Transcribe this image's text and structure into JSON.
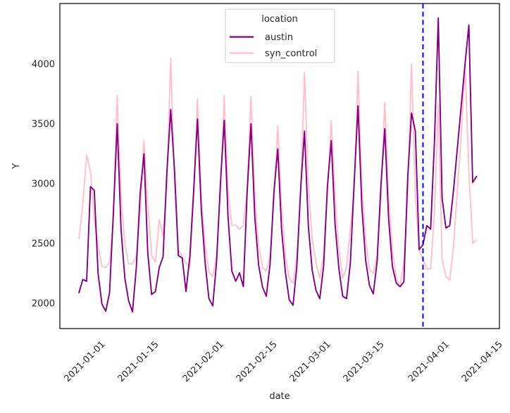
{
  "figure": {
    "background": "#ffffff"
  },
  "chart_data": {
    "type": "line",
    "title": "",
    "xlabel": "date",
    "ylabel": "Y",
    "legend_title": "location",
    "legend_position": "upper center",
    "grid": false,
    "text_color": "#262626",
    "spine_color": "#262626",
    "ylim": [
      1790,
      4505
    ],
    "xlim": [
      "2020-12-21",
      "2021-04-15"
    ],
    "yticks": [
      2000,
      2500,
      3000,
      3500,
      4000
    ],
    "xticks": [
      "2021-01-01",
      "2021-01-15",
      "2021-02-01",
      "2021-02-15",
      "2021-03-01",
      "2021-03-15",
      "2021-04-01",
      "2021-04-15"
    ],
    "treatment_line": {
      "x": "2021-03-26",
      "color": "#0000EE",
      "style": "dashed"
    },
    "x": [
      "2020-12-26",
      "2020-12-27",
      "2020-12-28",
      "2020-12-29",
      "2020-12-30",
      "2020-12-31",
      "2021-01-01",
      "2021-01-02",
      "2021-01-03",
      "2021-01-04",
      "2021-01-05",
      "2021-01-06",
      "2021-01-07",
      "2021-01-08",
      "2021-01-09",
      "2021-01-10",
      "2021-01-11",
      "2021-01-12",
      "2021-01-13",
      "2021-01-14",
      "2021-01-15",
      "2021-01-16",
      "2021-01-17",
      "2021-01-18",
      "2021-01-19",
      "2021-01-20",
      "2021-01-21",
      "2021-01-22",
      "2021-01-23",
      "2021-01-24",
      "2021-01-25",
      "2021-01-26",
      "2021-01-27",
      "2021-01-28",
      "2021-01-29",
      "2021-01-30",
      "2021-01-31",
      "2021-02-01",
      "2021-02-02",
      "2021-02-03",
      "2021-02-04",
      "2021-02-05",
      "2021-02-06",
      "2021-02-07",
      "2021-02-08",
      "2021-02-09",
      "2021-02-10",
      "2021-02-11",
      "2021-02-12",
      "2021-02-13",
      "2021-02-14",
      "2021-02-15",
      "2021-02-16",
      "2021-02-17",
      "2021-02-18",
      "2021-02-19",
      "2021-02-20",
      "2021-02-21",
      "2021-02-22",
      "2021-02-23",
      "2021-02-24",
      "2021-02-25",
      "2021-02-26",
      "2021-02-27",
      "2021-02-28",
      "2021-03-01",
      "2021-03-02",
      "2021-03-03",
      "2021-03-04",
      "2021-03-05",
      "2021-03-06",
      "2021-03-07",
      "2021-03-08",
      "2021-03-09",
      "2021-03-10",
      "2021-03-11",
      "2021-03-12",
      "2021-03-13",
      "2021-03-14",
      "2021-03-15",
      "2021-03-16",
      "2021-03-17",
      "2021-03-18",
      "2021-03-19",
      "2021-03-20",
      "2021-03-21",
      "2021-03-22",
      "2021-03-23",
      "2021-03-24",
      "2021-03-25",
      "2021-03-26",
      "2021-03-27",
      "2021-03-28",
      "2021-03-29",
      "2021-03-30",
      "2021-03-31",
      "2021-04-01",
      "2021-04-02",
      "2021-04-03",
      "2021-04-04",
      "2021-04-05",
      "2021-04-06",
      "2021-04-07",
      "2021-04-08",
      "2021-04-09"
    ],
    "series": [
      {
        "name": "austin",
        "color": "#800080",
        "values": [
          2090,
          2200,
          2185,
          2975,
          2945,
          2250,
          1995,
          1935,
          2090,
          2760,
          3500,
          2620,
          2210,
          2020,
          1930,
          2300,
          2920,
          3250,
          2420,
          2075,
          2100,
          2300,
          2390,
          3100,
          3620,
          3110,
          2400,
          2380,
          2100,
          2390,
          2940,
          3540,
          2780,
          2340,
          2040,
          1980,
          2350,
          3000,
          3530,
          2720,
          2270,
          2185,
          2255,
          2140,
          2930,
          3500,
          2720,
          2320,
          2140,
          2060,
          2330,
          2930,
          3290,
          2620,
          2260,
          2030,
          1985,
          2310,
          2960,
          3440,
          2650,
          2280,
          2110,
          2040,
          2310,
          2980,
          3360,
          2660,
          2290,
          2060,
          2040,
          2340,
          3010,
          3650,
          2810,
          2360,
          2150,
          2080,
          2350,
          2990,
          3460,
          2710,
          2310,
          2170,
          2140,
          2180,
          3050,
          3590,
          3440,
          2450,
          2490,
          2650,
          2620,
          3350,
          4385,
          2880,
          2630,
          2650,
          2950,
          3300,
          3650,
          4000,
          4325,
          3010,
          3060
        ]
      },
      {
        "name": "syn_control",
        "color": "#FFC0CB",
        "values": [
          2540,
          2830,
          3240,
          3100,
          2700,
          2480,
          2310,
          2300,
          2340,
          2700,
          3740,
          2900,
          2500,
          2330,
          2330,
          2400,
          2760,
          3360,
          2830,
          2400,
          2345,
          2700,
          2560,
          3000,
          4050,
          3000,
          2450,
          2390,
          2340,
          2300,
          2900,
          3710,
          2900,
          2490,
          2260,
          2225,
          2400,
          2930,
          3735,
          2950,
          2650,
          2655,
          2620,
          2650,
          2960,
          3730,
          2900,
          2480,
          2300,
          2270,
          2400,
          2870,
          3485,
          2820,
          2400,
          2210,
          2170,
          2400,
          2920,
          3930,
          3000,
          2540,
          2340,
          2210,
          2400,
          2920,
          3530,
          2900,
          2450,
          2210,
          2300,
          2630,
          2950,
          3940,
          3000,
          2540,
          2280,
          2250,
          2400,
          2900,
          3680,
          2900,
          2450,
          2210,
          2140,
          2350,
          2900,
          4000,
          2900,
          2440,
          2370,
          2290,
          2290,
          2750,
          3670,
          2370,
          2225,
          2195,
          2480,
          2950,
          3400,
          3990,
          3100,
          2500,
          2530
        ]
      }
    ]
  }
}
